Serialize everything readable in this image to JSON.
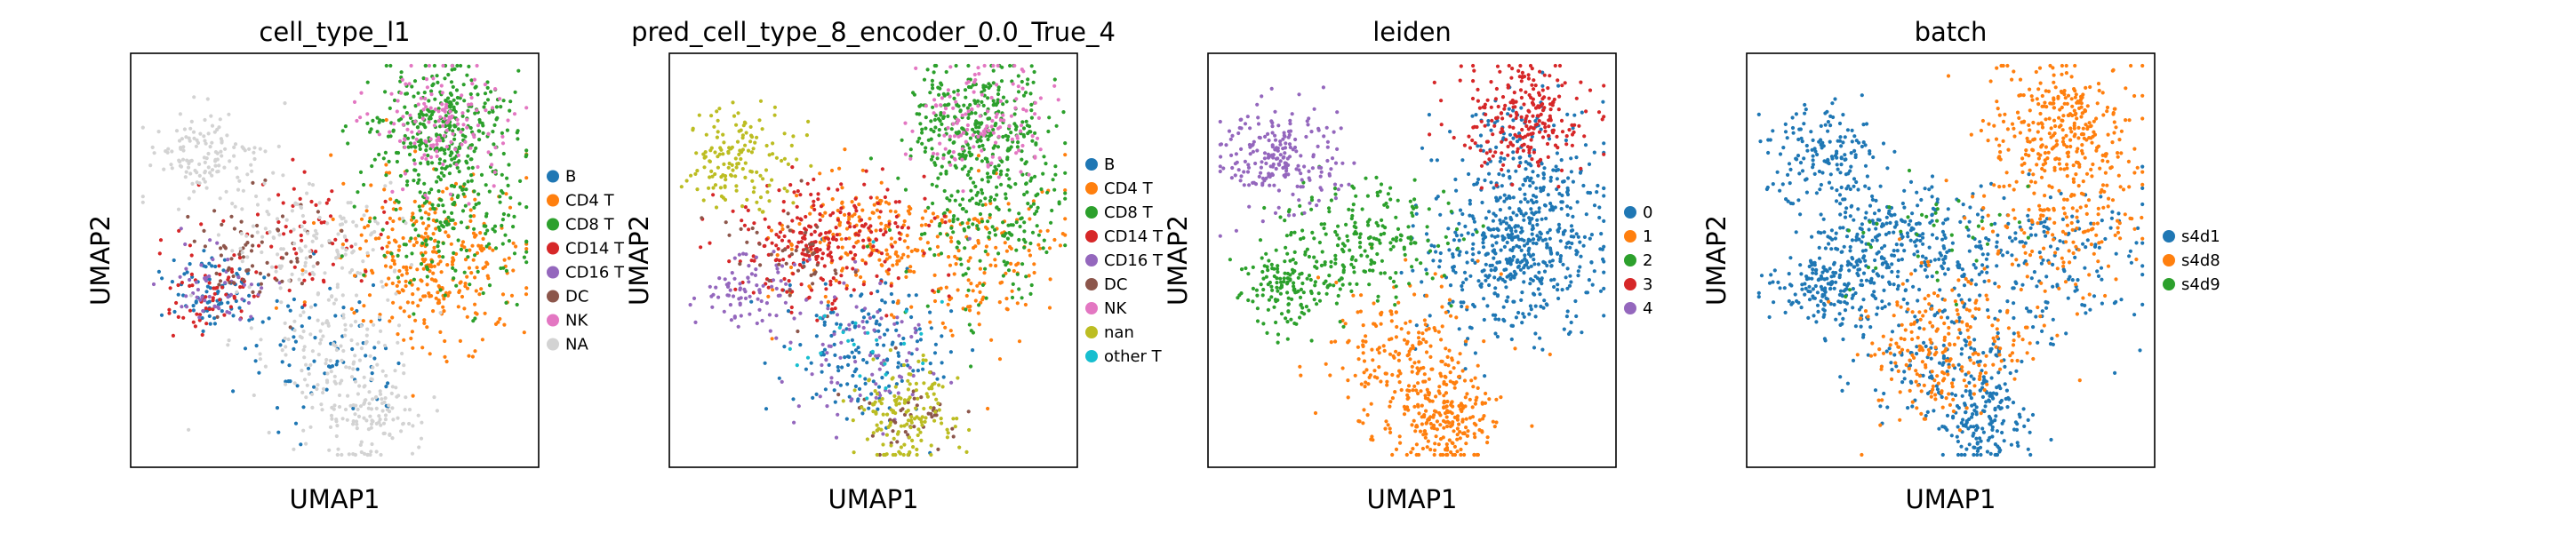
{
  "chart_data": [
    {
      "type": "scatter",
      "title": "cell_type_l1",
      "xlabel": "UMAP1",
      "ylabel": "UMAP2",
      "legend_position": "right",
      "grid": false,
      "series": [
        {
          "name": "B",
          "color": "#1f77b4"
        },
        {
          "name": "CD4 T",
          "color": "#ff7f0e"
        },
        {
          "name": "CD8 T",
          "color": "#2ca02c"
        },
        {
          "name": "CD14 T",
          "color": "#d62728"
        },
        {
          "name": "CD16 T",
          "color": "#9467bd"
        },
        {
          "name": "DC",
          "color": "#8c564b"
        },
        {
          "name": "NK",
          "color": "#e377c2"
        },
        {
          "name": "NA",
          "color": "#d3d3d3"
        }
      ]
    },
    {
      "type": "scatter",
      "title": "pred_cell_type_8_encoder_0.0_True_4",
      "xlabel": "UMAP1",
      "ylabel": "UMAP2",
      "legend_position": "right",
      "grid": false,
      "series": [
        {
          "name": "B",
          "color": "#1f77b4"
        },
        {
          "name": "CD4 T",
          "color": "#ff7f0e"
        },
        {
          "name": "CD8 T",
          "color": "#2ca02c"
        },
        {
          "name": "CD14 T",
          "color": "#d62728"
        },
        {
          "name": "CD16 T",
          "color": "#9467bd"
        },
        {
          "name": "DC",
          "color": "#8c564b"
        },
        {
          "name": "NK",
          "color": "#e377c2"
        },
        {
          "name": "nan",
          "color": "#bcbd22"
        },
        {
          "name": "other T",
          "color": "#17becf"
        }
      ]
    },
    {
      "type": "scatter",
      "title": "leiden",
      "xlabel": "UMAP1",
      "ylabel": "UMAP2",
      "legend_position": "right",
      "grid": false,
      "series": [
        {
          "name": "0",
          "color": "#1f77b4"
        },
        {
          "name": "1",
          "color": "#ff7f0e"
        },
        {
          "name": "2",
          "color": "#2ca02c"
        },
        {
          "name": "3",
          "color": "#d62728"
        },
        {
          "name": "4",
          "color": "#9467bd"
        }
      ]
    },
    {
      "type": "scatter",
      "title": "batch",
      "xlabel": "UMAP1",
      "ylabel": "UMAP2",
      "legend_position": "right",
      "grid": false,
      "series": [
        {
          "name": "s4d1",
          "color": "#1f77b4"
        },
        {
          "name": "s4d8",
          "color": "#ff7f0e"
        },
        {
          "name": "s4d9",
          "color": "#2ca02c"
        }
      ]
    }
  ]
}
